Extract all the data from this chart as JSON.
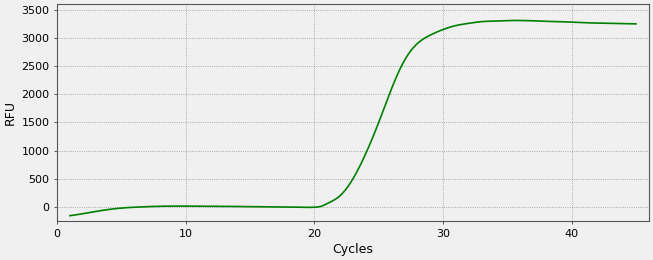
{
  "title": "",
  "xlabel": "Cycles",
  "ylabel": "RFU",
  "line_color": "#008000",
  "line_width": 1.2,
  "background_color": "#f0f0f0",
  "grid_color": "#888888",
  "xlim": [
    0,
    46
  ],
  "ylim": [
    -250,
    3600
  ],
  "xticks": [
    0,
    10,
    20,
    30,
    40
  ],
  "yticks": [
    0,
    500,
    1000,
    1500,
    2000,
    2500,
    3000,
    3500
  ],
  "figsize": [
    6.53,
    2.6
  ],
  "dpi": 100,
  "curve_points_x": [
    1,
    2,
    3,
    4,
    5,
    6,
    7,
    8,
    9,
    10,
    11,
    12,
    13,
    14,
    15,
    16,
    17,
    18,
    19,
    19.5,
    20,
    20.5,
    21,
    22,
    23,
    24,
    25,
    26,
    27,
    28,
    29,
    30,
    31,
    32,
    33,
    34,
    35,
    36,
    37,
    38,
    39,
    40,
    41,
    42,
    43,
    44,
    45
  ],
  "curve_points_y": [
    -155,
    -120,
    -80,
    -45,
    -20,
    -5,
    5,
    12,
    15,
    15,
    13,
    11,
    10,
    8,
    6,
    4,
    2,
    0,
    -5,
    -8,
    -5,
    10,
    60,
    200,
    500,
    950,
    1500,
    2100,
    2600,
    2900,
    3050,
    3150,
    3220,
    3260,
    3290,
    3300,
    3310,
    3310,
    3305,
    3295,
    3290,
    3280,
    3270,
    3265,
    3260,
    3255,
    3250
  ]
}
